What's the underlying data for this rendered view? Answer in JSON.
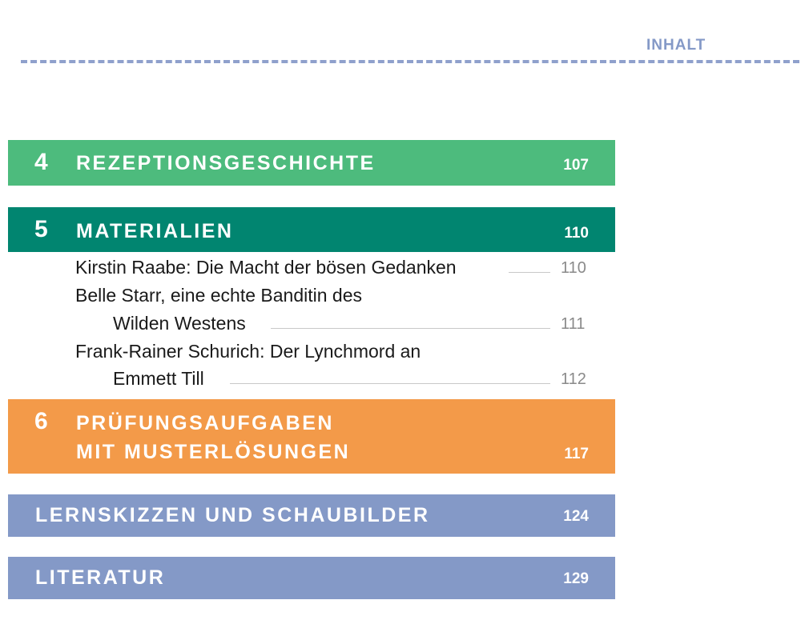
{
  "header": {
    "label": "INHALT"
  },
  "chapters": [
    {
      "number": "4",
      "title": "REZEPTIONSGESCHICHTE",
      "page": "107",
      "color": "#4dbb7d"
    },
    {
      "number": "5",
      "title": "MATERIALIEN",
      "page": "110",
      "color": "#018570",
      "entries": [
        {
          "lines": [
            "Kirstin Raabe: Die Macht der bösen Gedanken"
          ],
          "page": "110"
        },
        {
          "lines": [
            "Belle Starr, eine echte Banditin des",
            "Wilden Westens"
          ],
          "page": "111"
        },
        {
          "lines": [
            "Frank-Rainer Schurich: Der Lynchmord an",
            "Emmett Till"
          ],
          "page": "112"
        }
      ]
    },
    {
      "number": "6",
      "title_lines": [
        "PRÜFUNGSAUFGABEN",
        "MIT MUSTERLÖSUNGEN"
      ],
      "page": "117",
      "color": "#f39a49"
    }
  ],
  "appendix": [
    {
      "title": "LERNSKIZZEN UND SCHAUBILDER",
      "page": "124",
      "color": "#8499c7"
    },
    {
      "title": "LITERATUR",
      "page": "129",
      "color": "#8499c7"
    }
  ]
}
